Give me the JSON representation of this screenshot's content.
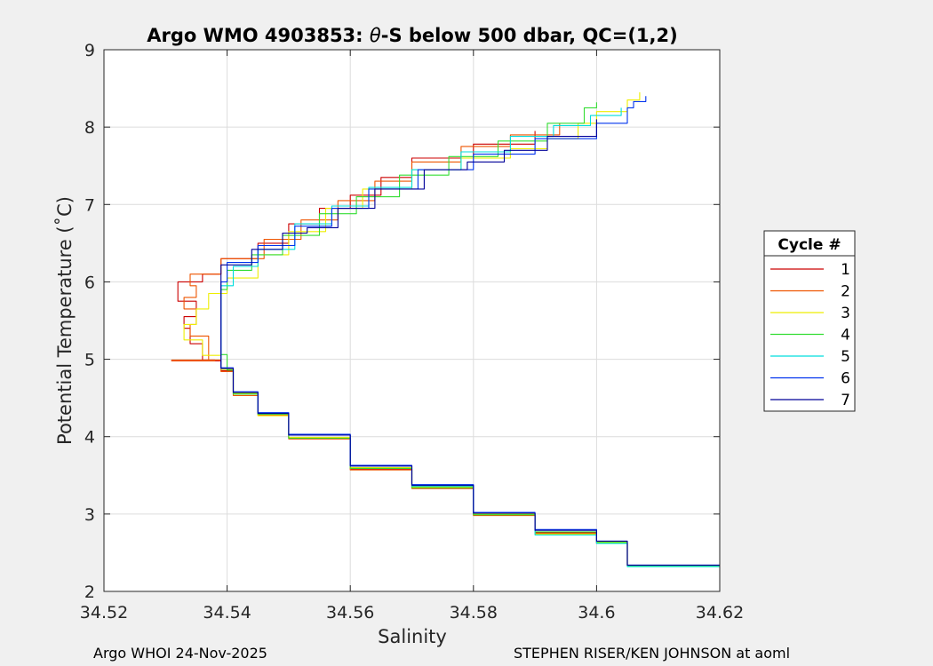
{
  "chart_data": {
    "type": "line",
    "title_prefix": "Argo WMO 4903853: ",
    "title_theta": "θ",
    "title_suffix": "-S below 500 dbar,  QC=(1,2)",
    "xlabel": "Salinity",
    "ylabel": "Potential Temperature (˚C)",
    "xlim": [
      34.52,
      34.62
    ],
    "ylim": [
      2,
      9
    ],
    "xticks": [
      34.52,
      34.54,
      34.56,
      34.58,
      34.6,
      34.62
    ],
    "xtick_labels": [
      "34.52",
      "34.54",
      "34.56",
      "34.58",
      "34.6",
      "34.62"
    ],
    "yticks": [
      2,
      3,
      4,
      5,
      6,
      7,
      8,
      9
    ],
    "ytick_labels": [
      "2",
      "3",
      "4",
      "5",
      "6",
      "7",
      "8",
      "9"
    ],
    "grid": true,
    "legend": {
      "title": "Cycle #",
      "placement": "outside-right"
    },
    "series": [
      {
        "name": "1",
        "color": "#cc0000",
        "points": [
          [
            34.62,
            2.33
          ],
          [
            34.605,
            2.62
          ],
          [
            34.6,
            2.76
          ],
          [
            34.59,
            2.99
          ],
          [
            34.58,
            3.33
          ],
          [
            34.57,
            3.58
          ],
          [
            34.56,
            3.98
          ],
          [
            34.55,
            4.28
          ],
          [
            34.545,
            4.55
          ],
          [
            34.541,
            4.85
          ],
          [
            34.539,
            4.98
          ],
          [
            34.531,
            4.98
          ],
          [
            34.538,
            4.99
          ],
          [
            34.536,
            5.2
          ],
          [
            34.534,
            5.4
          ],
          [
            34.533,
            5.55
          ],
          [
            34.535,
            5.75
          ],
          [
            34.532,
            6.0
          ],
          [
            34.536,
            6.1
          ],
          [
            34.539,
            6.3
          ],
          [
            34.545,
            6.5
          ],
          [
            34.55,
            6.75
          ],
          [
            34.555,
            6.95
          ],
          [
            34.56,
            7.12
          ],
          [
            34.565,
            7.35
          ],
          [
            34.57,
            7.6
          ],
          [
            34.58,
            7.78
          ],
          [
            34.59,
            7.95
          ]
        ]
      },
      {
        "name": "2",
        "color": "#ee5500",
        "points": [
          [
            34.62,
            2.33
          ],
          [
            34.605,
            2.63
          ],
          [
            34.6,
            2.75
          ],
          [
            34.59,
            2.98
          ],
          [
            34.58,
            3.33
          ],
          [
            34.57,
            3.57
          ],
          [
            34.56,
            3.97
          ],
          [
            34.55,
            4.28
          ],
          [
            34.545,
            4.53
          ],
          [
            34.541,
            4.84
          ],
          [
            34.539,
            4.99
          ],
          [
            34.531,
            4.98
          ],
          [
            34.538,
            4.99
          ],
          [
            34.537,
            5.3
          ],
          [
            34.534,
            5.45
          ],
          [
            34.535,
            5.65
          ],
          [
            34.533,
            5.8
          ],
          [
            34.535,
            5.95
          ],
          [
            34.534,
            6.1
          ],
          [
            34.539,
            6.3
          ],
          [
            34.546,
            6.55
          ],
          [
            34.552,
            6.8
          ],
          [
            34.558,
            7.05
          ],
          [
            34.564,
            7.3
          ],
          [
            34.57,
            7.55
          ],
          [
            34.578,
            7.75
          ],
          [
            34.586,
            7.9
          ],
          [
            34.594,
            8.05
          ]
        ]
      },
      {
        "name": "3",
        "color": "#eeee00",
        "points": [
          [
            34.62,
            2.33
          ],
          [
            34.605,
            2.64
          ],
          [
            34.6,
            2.74
          ],
          [
            34.59,
            3.0
          ],
          [
            34.58,
            3.35
          ],
          [
            34.57,
            3.6
          ],
          [
            34.56,
            3.99
          ],
          [
            34.55,
            4.27
          ],
          [
            34.545,
            4.56
          ],
          [
            34.541,
            4.87
          ],
          [
            34.539,
            5.05
          ],
          [
            34.536,
            5.25
          ],
          [
            34.533,
            5.45
          ],
          [
            34.535,
            5.65
          ],
          [
            34.537,
            5.85
          ],
          [
            34.54,
            6.05
          ],
          [
            34.545,
            6.35
          ],
          [
            34.55,
            6.65
          ],
          [
            34.556,
            6.95
          ],
          [
            34.562,
            7.2
          ],
          [
            34.57,
            7.45
          ],
          [
            34.578,
            7.6
          ],
          [
            34.586,
            7.72
          ],
          [
            34.592,
            7.85
          ],
          [
            34.597,
            8.05
          ],
          [
            34.6,
            8.2
          ],
          [
            34.605,
            8.35
          ],
          [
            34.607,
            8.45
          ]
        ]
      },
      {
        "name": "4",
        "color": "#33dd33",
        "points": [
          [
            34.62,
            2.33
          ],
          [
            34.605,
            2.63
          ],
          [
            34.6,
            2.77
          ],
          [
            34.59,
            2.99
          ],
          [
            34.58,
            3.34
          ],
          [
            34.57,
            3.59
          ],
          [
            34.56,
            3.98
          ],
          [
            34.55,
            4.29
          ],
          [
            34.545,
            4.55
          ],
          [
            34.541,
            4.86
          ],
          [
            34.54,
            5.06
          ],
          [
            34.539,
            5.3
          ],
          [
            34.539,
            5.6
          ],
          [
            34.539,
            5.9
          ],
          [
            34.54,
            6.15
          ],
          [
            34.544,
            6.35
          ],
          [
            34.549,
            6.6
          ],
          [
            34.555,
            6.88
          ],
          [
            34.561,
            7.1
          ],
          [
            34.568,
            7.38
          ],
          [
            34.576,
            7.62
          ],
          [
            34.584,
            7.82
          ],
          [
            34.592,
            8.05
          ],
          [
            34.598,
            8.25
          ],
          [
            34.6,
            8.32
          ]
        ]
      },
      {
        "name": "5",
        "color": "#00dddd",
        "points": [
          [
            34.62,
            2.32
          ],
          [
            34.605,
            2.62
          ],
          [
            34.6,
            2.73
          ],
          [
            34.59,
            3.01
          ],
          [
            34.58,
            3.36
          ],
          [
            34.57,
            3.62
          ],
          [
            34.56,
            4.02
          ],
          [
            34.55,
            4.3
          ],
          [
            34.545,
            4.57
          ],
          [
            34.541,
            4.88
          ],
          [
            34.539,
            5.08
          ],
          [
            34.539,
            5.35
          ],
          [
            34.539,
            5.65
          ],
          [
            34.539,
            5.95
          ],
          [
            34.541,
            6.2
          ],
          [
            34.545,
            6.42
          ],
          [
            34.551,
            6.75
          ],
          [
            34.557,
            6.98
          ],
          [
            34.563,
            7.22
          ],
          [
            34.57,
            7.45
          ],
          [
            34.578,
            7.68
          ],
          [
            34.586,
            7.88
          ],
          [
            34.593,
            8.02
          ],
          [
            34.599,
            8.15
          ],
          [
            34.604,
            8.25
          ]
        ]
      },
      {
        "name": "6",
        "color": "#0033ee",
        "points": [
          [
            34.62,
            2.34
          ],
          [
            34.605,
            2.65
          ],
          [
            34.6,
            2.8
          ],
          [
            34.59,
            3.02
          ],
          [
            34.58,
            3.38
          ],
          [
            34.57,
            3.63
          ],
          [
            34.56,
            4.03
          ],
          [
            34.55,
            4.31
          ],
          [
            34.545,
            4.58
          ],
          [
            34.541,
            4.89
          ],
          [
            34.539,
            5.1
          ],
          [
            34.539,
            5.4
          ],
          [
            34.539,
            5.7
          ],
          [
            34.539,
            6.0
          ],
          [
            34.54,
            6.25
          ],
          [
            34.545,
            6.47
          ],
          [
            34.551,
            6.72
          ],
          [
            34.557,
            6.95
          ],
          [
            34.563,
            7.2
          ],
          [
            34.571,
            7.45
          ],
          [
            34.58,
            7.65
          ],
          [
            34.59,
            7.85
          ],
          [
            34.6,
            8.05
          ],
          [
            34.605,
            8.25
          ],
          [
            34.606,
            8.33
          ],
          [
            34.608,
            8.4
          ]
        ]
      },
      {
        "name": "7",
        "color": "#000099",
        "points": [
          [
            34.62,
            2.34
          ],
          [
            34.605,
            2.65
          ],
          [
            34.6,
            2.79
          ],
          [
            34.59,
            3.01
          ],
          [
            34.58,
            3.37
          ],
          [
            34.57,
            3.62
          ],
          [
            34.56,
            4.02
          ],
          [
            34.55,
            4.3
          ],
          [
            34.545,
            4.57
          ],
          [
            34.541,
            4.88
          ],
          [
            34.539,
            5.08
          ],
          [
            34.539,
            5.38
          ],
          [
            34.539,
            5.68
          ],
          [
            34.539,
            5.98
          ],
          [
            34.539,
            6.22
          ],
          [
            34.544,
            6.42
          ],
          [
            34.549,
            6.63
          ],
          [
            34.553,
            6.7
          ],
          [
            34.558,
            6.95
          ],
          [
            34.564,
            7.2
          ],
          [
            34.572,
            7.45
          ],
          [
            34.579,
            7.55
          ],
          [
            34.585,
            7.7
          ],
          [
            34.592,
            7.88
          ],
          [
            34.6,
            8.1
          ]
        ]
      }
    ]
  },
  "footer": {
    "left": "Argo WHOI 24-Nov-2025",
    "right": "STEPHEN RISER/KEN JOHNSON at aoml"
  }
}
